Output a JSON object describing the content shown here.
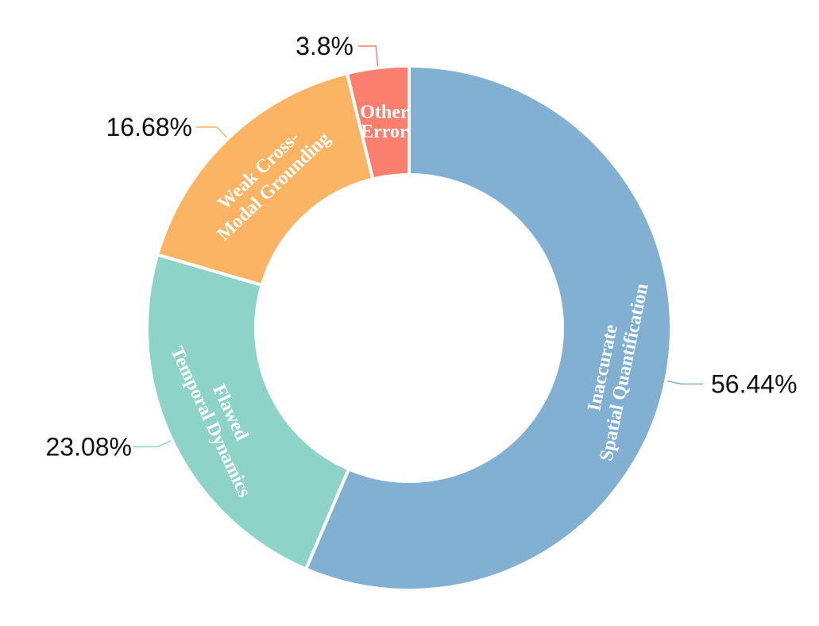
{
  "chart_data": {
    "type": "pie",
    "title": "",
    "legend": "none",
    "slices": [
      {
        "label": "Inaccurate Spatial Quantification",
        "lines": [
          "Inaccurate",
          "Spatial Quantification"
        ],
        "value": 56.44,
        "percent_label": "56.44%",
        "color": "#82B0D2"
      },
      {
        "label": "Flawed Temporal Dynamics",
        "lines": [
          "Flawed",
          "Temporal Dynamics"
        ],
        "value": 23.08,
        "percent_label": "23.08%",
        "color": "#8ED3C7"
      },
      {
        "label": "Weak Cross-Modal Grounding",
        "lines": [
          "Weak Cross-",
          "Modal Grounding"
        ],
        "value": 16.68,
        "percent_label": "16.68%",
        "color": "#FBB463"
      },
      {
        "label": "Other Error",
        "lines": [
          "Other",
          "Error"
        ],
        "value": 3.8,
        "percent_label": "3.8%",
        "color": "#FA7F6F"
      }
    ]
  }
}
